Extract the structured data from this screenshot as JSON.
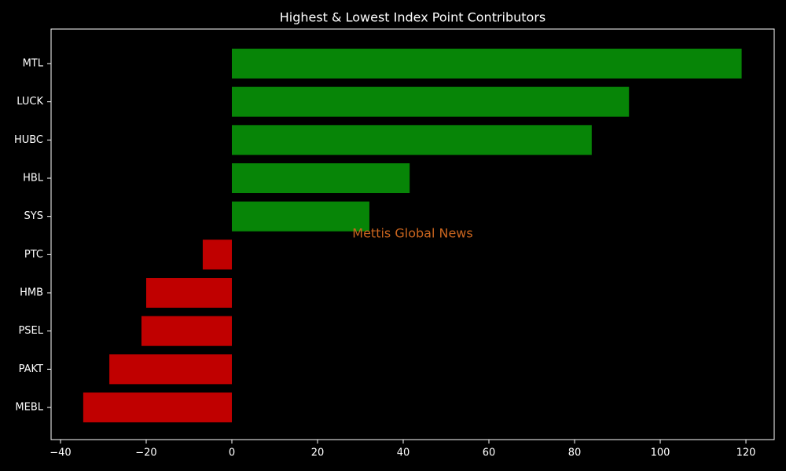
{
  "chart_data": {
    "type": "hbar",
    "title": "Highest & Lowest Index Point Contributors",
    "annotation": "Mettis Global News",
    "categories": [
      "MTL",
      "LUCK",
      "HUBC",
      "HBL",
      "SYS",
      "PTC",
      "HMB",
      "PSEL",
      "PAKT",
      "MEBL"
    ],
    "values": [
      119,
      92.7,
      84,
      41.5,
      32.1,
      -6.8,
      -20,
      -21.1,
      -28.6,
      -34.7
    ],
    "colors": [
      "#078507",
      "#078507",
      "#078507",
      "#078507",
      "#078507",
      "#c00000",
      "#c00000",
      "#c00000",
      "#c00000",
      "#c00000"
    ],
    "xlim": [
      -42.2,
      126.6
    ],
    "xticks": [
      {
        "value": -40,
        "label": "−40"
      },
      {
        "value": -20,
        "label": "−20"
      },
      0,
      20,
      40,
      60,
      80,
      100,
      120
    ],
    "grid": false
  }
}
